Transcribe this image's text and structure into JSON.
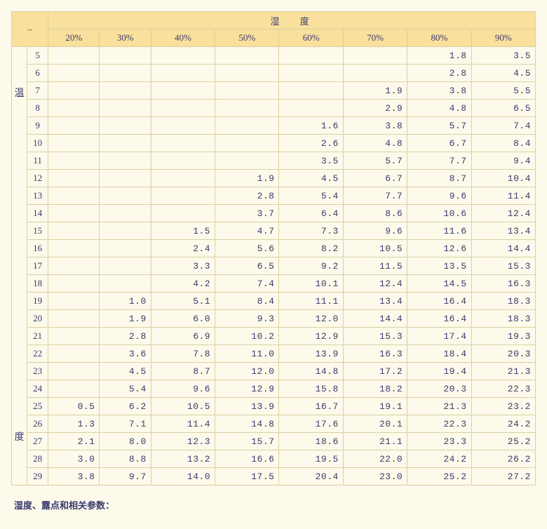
{
  "corner": "–",
  "humidity_header": "湿  度",
  "temperature_header": "温度",
  "footer": "湿度、露点和相关参数：",
  "columns": [
    "20%",
    "30%",
    "40%",
    "50%",
    "60%",
    "70%",
    "80%",
    "90%"
  ],
  "row_labels": [
    5,
    6,
    7,
    8,
    9,
    10,
    11,
    12,
    13,
    14,
    15,
    16,
    17,
    18,
    19,
    20,
    21,
    22,
    23,
    24,
    25,
    26,
    27,
    28,
    29
  ],
  "rows": [
    [
      "",
      "",
      "",
      "",
      "",
      "",
      "1.8",
      "3.5"
    ],
    [
      "",
      "",
      "",
      "",
      "",
      "",
      "2.8",
      "4.5"
    ],
    [
      "",
      "",
      "",
      "",
      "",
      "1.9",
      "3.8",
      "5.5"
    ],
    [
      "",
      "",
      "",
      "",
      "",
      "2.9",
      "4.8",
      "6.5"
    ],
    [
      "",
      "",
      "",
      "",
      "1.6",
      "3.8",
      "5.7",
      "7.4"
    ],
    [
      "",
      "",
      "",
      "",
      "2.6",
      "4.8",
      "6.7",
      "8.4"
    ],
    [
      "",
      "",
      "",
      "",
      "3.5",
      "5.7",
      "7.7",
      "9.4"
    ],
    [
      "",
      "",
      "",
      "1.9",
      "4.5",
      "6.7",
      "8.7",
      "10.4"
    ],
    [
      "",
      "",
      "",
      "2.8",
      "5.4",
      "7.7",
      "9.6",
      "11.4"
    ],
    [
      "",
      "",
      "",
      "3.7",
      "6.4",
      "8.6",
      "10.6",
      "12.4"
    ],
    [
      "",
      "",
      "1.5",
      "4.7",
      "7.3",
      "9.6",
      "11.6",
      "13.4"
    ],
    [
      "",
      "",
      "2.4",
      "5.6",
      "8.2",
      "10.5",
      "12.6",
      "14.4"
    ],
    [
      "",
      "",
      "3.3",
      "6.5",
      "9.2",
      "11.5",
      "13.5",
      "15.3"
    ],
    [
      "",
      "",
      "4.2",
      "7.4",
      "10.1",
      "12.4",
      "14.5",
      "16.3"
    ],
    [
      "",
      "1.0",
      "5.1",
      "8.4",
      "11.1",
      "13.4",
      "16.4",
      "18.3"
    ],
    [
      "",
      "1.9",
      "6.0",
      "9.3",
      "12.0",
      "14.4",
      "16.4",
      "18.3"
    ],
    [
      "",
      "2.8",
      "6.9",
      "10.2",
      "12.9",
      "15.3",
      "17.4",
      "19.3"
    ],
    [
      "",
      "3.6",
      "7.8",
      "11.0",
      "13.9",
      "16.3",
      "18.4",
      "20.3"
    ],
    [
      "",
      "4.5",
      "8.7",
      "12.0",
      "14.8",
      "17.2",
      "19.4",
      "21.3"
    ],
    [
      "",
      "5.4",
      "9.6",
      "12.9",
      "15.8",
      "18.2",
      "20.3",
      "22.3"
    ],
    [
      "0.5",
      "6.2",
      "10.5",
      "13.9",
      "16.7",
      "19.1",
      "21.3",
      "23.2"
    ],
    [
      "1.3",
      "7.1",
      "11.4",
      "14.8",
      "17.6",
      "20.1",
      "22.3",
      "24.2"
    ],
    [
      "2.1",
      "8.0",
      "12.3",
      "15.7",
      "18.6",
      "21.1",
      "23.3",
      "25.2"
    ],
    [
      "3.0",
      "8.8",
      "13.2",
      "16.6",
      "19.5",
      "22.0",
      "24.2",
      "26.2"
    ],
    [
      "3.8",
      "9.7",
      "14.0",
      "17.5",
      "20.4",
      "23.0",
      "25.2",
      "27.2"
    ]
  ]
}
